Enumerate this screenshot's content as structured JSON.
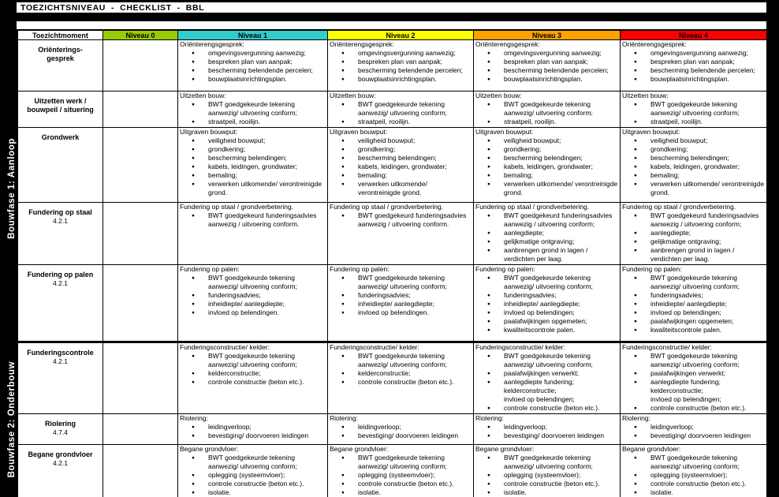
{
  "title": "TOEZICHTSNIVEAU  -  CHECKLIST  -  BBL",
  "columns": {
    "moment_label": "Toezichtmoment",
    "levels": [
      {
        "label": "Niveau 0",
        "color": "#99CC00"
      },
      {
        "label": "Niveau 1",
        "color": "#33CCCC"
      },
      {
        "label": "Niveau 2",
        "color": "#FFFF00"
      },
      {
        "label": "Niveau 3",
        "color": "#FFA200"
      },
      {
        "label": "Niveau 4",
        "color": "#FF0000"
      }
    ]
  },
  "sections": [
    {
      "label": "Bouwfase 1: Aanloop",
      "rows": [
        {
          "moment": "Oriënterings-\ngesprek",
          "code": "",
          "cells": [
            null,
            {
              "heading": "Oriënterengsgesprek:",
              "bullets": [
                "omgevingsvergunning aanwezig;",
                "bespreken plan van aanpak;",
                "bescherming belendende percelen;",
                "bouwplaatsinrichtingsplan."
              ]
            },
            {
              "heading": "Oriënterengsgesprek:",
              "bullets": [
                "omgevingsvergunning aanwezig;",
                "bespreken plan van aanpak;",
                "bescherming belendende percelen;",
                "bouwplaatsinrichtingsplan."
              ]
            },
            {
              "heading": "Oriënterengsgesprek:",
              "bullets": [
                "omgevingsvergunning aanwezig;",
                "bespreken plan van aanpak;",
                "bescherming belendende percelen;",
                "bouwplaatsinrichtingsplan."
              ]
            },
            {
              "heading": "Oriënterengsgesprek:",
              "bullets": [
                "omgevingsvergunning aanwezig;",
                "bespreken plan van aanpak;",
                "bescherming belendende percelen;",
                "bouwplaatsinrichtingsplan."
              ]
            }
          ]
        },
        {
          "moment": "Uitzetten werk /\nbouwpeil / situering",
          "code": "",
          "cells": [
            null,
            {
              "heading": "Uitzetten bouw:",
              "bullets": [
                "BWT goedgekeurde tekening aanwezig/ uitvoering conform;",
                "straatpeil, rooilijn."
              ]
            },
            {
              "heading": "Uitzetten bouw:",
              "bullets": [
                "BWT goedgekeurde tekening aanwezig/ uitvoering conform;",
                "straatpeil, rooilijn."
              ]
            },
            {
              "heading": "Uitzetten bouw:",
              "bullets": [
                "BWT goedgekeurde tekening aanwezig/ uitvoering conform;",
                "straatpeil, rooilijn."
              ]
            },
            {
              "heading": "Uitzetten bouw:",
              "bullets": [
                "BWT goedgekeurde tekening aanwezig/ uitvoering conform;",
                "straatpeil, rooilijn."
              ]
            }
          ]
        },
        {
          "moment": "Grondwerk",
          "code": "",
          "cells": [
            null,
            {
              "heading": "Uitgraven bouwput:",
              "bullets": [
                "veiligheid bouwput;",
                "grondkering;",
                "bescherming belendingen;",
                "kabels, leidingen, grondwater;",
                "bemaling;",
                "verwerken uitkomende/ verontreinigde grond."
              ]
            },
            {
              "heading": "Uitgraven bouwput:",
              "bullets": [
                "veiligheid bouwput;",
                "grondkering;",
                "bescherming belendingen;",
                "kabels, leidingen, grondwater;",
                "bemaling;",
                "verwerken uitkomende/ verontreinigde grond."
              ]
            },
            {
              "heading": "Uitgraven bouwput:",
              "bullets": [
                "veiligheid bouwput;",
                "grondkering;",
                "bescherming belendingen;",
                "kabels, leidingen, grondwater;",
                "bemaling;",
                "verwerken uitkomende/ verontreinigde grond."
              ]
            },
            {
              "heading": "Uitgraven bouwput:",
              "bullets": [
                "veiligheid bouwput;",
                "grondkering;",
                "bescherming belendingen;",
                "kabels, leidingen, grondwater;",
                "bemaling;",
                "verwerken uitkomende/ verontreinigde grond."
              ]
            }
          ]
        },
        {
          "moment": "Fundering op staal",
          "code": "4.2.1",
          "cells": [
            null,
            {
              "heading": "Fundering op staal / grondverbetering.",
              "bullets": [
                "BWT goedgekeurd funderingsadvies aanwezig / uitvoering conform."
              ]
            },
            {
              "heading": "Fundering op staal / grondverbetering.",
              "bullets": [
                "BWT goedgekeurd funderingsadvies aanwezig / uitvoering conform."
              ]
            },
            {
              "heading": "Fundering op staal / grondverbetering.",
              "bullets": [
                "BWT goedgekeurd funderingsadvies aanwezig / uitvoering conform;",
                "aanlegdiepte;",
                "gelijkmatige ontgraving;",
                "aanbrengen grond in lagen / verdichten per laag."
              ]
            },
            {
              "heading": "Fundering op staal / grondverbetering.",
              "bullets": [
                "BWT goedgekeurd funderingsadvies aanwezig / uitvoering conform;",
                "aanlegdiepte;",
                "gelijkmatige ontgraving;",
                "aanbrengen grond in lagen / verdichten per laag."
              ]
            }
          ]
        },
        {
          "moment": "Fundering op palen",
          "code": "4.2.1",
          "cells": [
            null,
            {
              "heading": "Fundering op palen:",
              "bullets": [
                "BWT goedgekeurde tekening aanwezig/ uitvoering conform;",
                "funderingsadvies;",
                "inheidiepte/ aanlegdiepte;",
                "invloed op belendingen."
              ]
            },
            {
              "heading": "Fundering op palen:",
              "bullets": [
                "BWT goedgekeurde tekening aanwezig/ uitvoering conform;",
                "funderingsadvies;",
                "inheidiepte/ aanlegdiepte;",
                "invloed op belendingen."
              ]
            },
            {
              "heading": "Fundering op palen:",
              "bullets": [
                "BWT goedgekeurde tekening aanwezig/ uitvoering conform;",
                "funderingsadvies;",
                "inheidiepte/ aanlegdiepte;",
                "invloed op belendingen;",
                "paalafwijkingen opgemeten;",
                "kwaliteitscontrole palen."
              ]
            },
            {
              "heading": "Fundering op palen:",
              "bullets": [
                "BWT goedgekeurde tekening aanwezig/ uitvoering conform;",
                "funderingsadvies;",
                "inheidiepte/ aanlegdiepte;",
                "invloed op belendingen;",
                "paalafwijkingen opgemeten;",
                "kwaliteitscontrole palen."
              ]
            }
          ]
        }
      ]
    },
    {
      "label": "Bouwfase 2: Onderbouw",
      "rows": [
        {
          "moment": "Funderingscontrole",
          "code": "4.2.1",
          "cells": [
            null,
            {
              "heading": "Funderingsconstructie/ kelder:",
              "bullets": [
                "BWT goedgekeurde tekening aanwezig/ uitvoering conform;",
                "kelderconstructie;",
                "controle constructie (beton etc.)."
              ]
            },
            {
              "heading": "Funderingsconstructie/ kelder:",
              "bullets": [
                "BWT goedgekeurde tekening aanwezig/ uitvoering conform;",
                "kelderconstructie;",
                "controle constructie (beton etc.)."
              ]
            },
            {
              "heading": "Funderingsconstructie/ kelder:",
              "bullets": [
                "BWT goedgekeurde tekening aanwezig/ uitvoering conform;",
                "paalafwijkingen verwerkt;",
                "aanlegdiepte fundering;\nkelderconstructie;\ninvloed op belendingen;",
                "controle constructie (beton etc.)."
              ]
            },
            {
              "heading": "Funderingsconstructie/ kelder:",
              "bullets": [
                "BWT goedgekeurde tekening aanwezig/ uitvoering conform;",
                "paalafwijkingen verwerkt;",
                "aanlegdiepte fundering;\nkelderconstructie;\ninvloed op belendingen;",
                "controle constructie (beton etc.)."
              ]
            }
          ]
        },
        {
          "moment": "Riolering",
          "code": "4.7.4",
          "cells": [
            null,
            {
              "heading": "Riolering:",
              "bullets": [
                "leidingverloop;",
                "bevestiging/ doorvoeren leidingen"
              ]
            },
            {
              "heading": "Riolering:",
              "bullets": [
                "leidingverloop;",
                "bevestiging/ doorvoeren leidingen"
              ]
            },
            {
              "heading": "Riolering:",
              "bullets": [
                "leidingverloop;",
                "bevestiging/ doorvoeren leidingen"
              ]
            },
            {
              "heading": "Riolering:",
              "bullets": [
                "leidingverloop;",
                "bevestiging/ doorvoeren leidingen"
              ]
            }
          ]
        },
        {
          "moment": "Begane grondvloer",
          "code": "4.2.1",
          "cells": [
            null,
            {
              "heading": "Begane grondvloer:",
              "bullets": [
                "BWT goedgekeurde tekening aanwezig/ uitvoering conform;",
                "oplegging (systeemvloer);",
                "controle constructie (beton etc.).",
                "isolatie."
              ]
            },
            {
              "heading": "Begane grondvloer:",
              "bullets": [
                "BWT goedgekeurde tekening aanwezig/ uitvoering conform;",
                "oplegging (systeemvloer);",
                "controle constructie (beton etc.).",
                "isolatie."
              ]
            },
            {
              "heading": "Begane grondvloer:",
              "bullets": [
                "BWT goedgekeurde tekening aanwezig/ uitvoering conform;",
                "oplegging (systeemvloer);",
                "controle constructie (beton etc.).",
                "isolatie."
              ]
            },
            {
              "heading": "Begane grondvloer:",
              "bullets": [
                "BWT goedgekeurde tekening aanwezig/ uitvoering conform;",
                "oplegging (systeemvloer);",
                "controle constructie (beton etc.).",
                "isolatie."
              ]
            }
          ]
        }
      ]
    }
  ]
}
